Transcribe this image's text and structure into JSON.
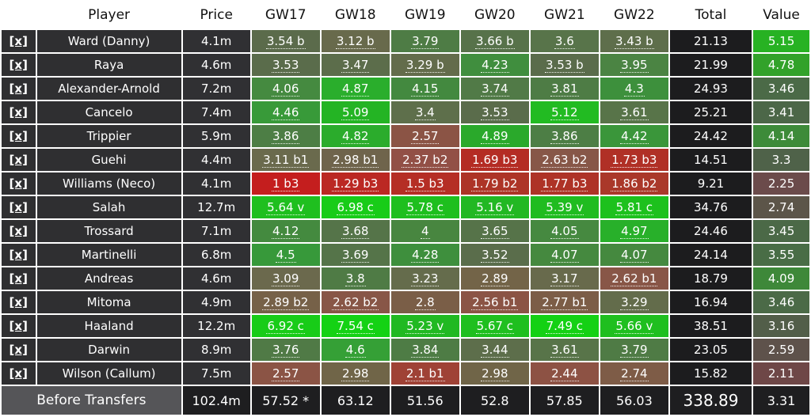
{
  "headers": {
    "remove": "",
    "player": "Player",
    "price": "Price",
    "gws": [
      "GW17",
      "GW18",
      "GW19",
      "GW20",
      "GW21",
      "GW22"
    ],
    "total": "Total",
    "value": "Value"
  },
  "rows": [
    {
      "remove": "[x]",
      "player": "Ward (Danny)",
      "price": "4.1m",
      "gw": [
        {
          "t": "3.54 b",
          "c": "#5b6b4b"
        },
        {
          "t": "3.12 b",
          "c": "#686a4c"
        },
        {
          "t": "3.79",
          "c": "#4e7c45"
        },
        {
          "t": "3.66 b",
          "c": "#57724a"
        },
        {
          "t": "3.6",
          "c": "#58744a"
        },
        {
          "t": "3.43 b",
          "c": "#5e6e4b"
        }
      ],
      "total": "21.13",
      "value": "5.15",
      "value_color": "#27b223"
    },
    {
      "remove": "[x]",
      "player": "Raya",
      "price": "4.6m",
      "gw": [
        {
          "t": "3.53",
          "c": "#5a6c4b"
        },
        {
          "t": "3.47",
          "c": "#5c6d4b"
        },
        {
          "t": "3.29 b",
          "c": "#636c4b"
        },
        {
          "t": "4.23",
          "c": "#408e3e"
        },
        {
          "t": "3.53 b",
          "c": "#5a6c4b"
        },
        {
          "t": "3.95",
          "c": "#4b8443"
        }
      ],
      "total": "21.99",
      "value": "4.78",
      "value_color": "#32a22a"
    },
    {
      "remove": "[x]",
      "player": "Alexander-Arnold",
      "price": "7.2m",
      "gw": [
        {
          "t": "4.06",
          "c": "#458a40"
        },
        {
          "t": "4.87",
          "c": "#2aae2c"
        },
        {
          "t": "4.15",
          "c": "#43893f"
        },
        {
          "t": "3.74",
          "c": "#517a47"
        },
        {
          "t": "3.81",
          "c": "#4e7c45"
        },
        {
          "t": "4.3",
          "c": "#3d903c"
        }
      ],
      "total": "24.93",
      "value": "3.46",
      "value_color": "#4b6a47"
    },
    {
      "remove": "[x]",
      "player": "Cancelo",
      "price": "7.4m",
      "gw": [
        {
          "t": "4.46",
          "c": "#389a39"
        },
        {
          "t": "5.09",
          "c": "#24b424"
        },
        {
          "t": "3.4",
          "c": "#5e6f4b"
        },
        {
          "t": "3.53",
          "c": "#5a6c4b"
        },
        {
          "t": "5.12",
          "c": "#22bb22"
        },
        {
          "t": "3.61",
          "c": "#587449"
        }
      ],
      "total": "25.21",
      "value": "3.41",
      "value_color": "#4c6748"
    },
    {
      "remove": "[x]",
      "player": "Trippier",
      "price": "5.9m",
      "gw": [
        {
          "t": "3.86",
          "c": "#4d7e45"
        },
        {
          "t": "4.82",
          "c": "#2bac2c"
        },
        {
          "t": "2.57",
          "c": "#8b5445"
        },
        {
          "t": "4.89",
          "c": "#2aa92b"
        },
        {
          "t": "3.86",
          "c": "#4d7e45"
        },
        {
          "t": "4.42",
          "c": "#3a963a"
        }
      ],
      "total": "24.42",
      "value": "4.14",
      "value_color": "#3d8b39"
    },
    {
      "remove": "[x]",
      "player": "Guehi",
      "price": "4.4m",
      "gw": [
        {
          "t": "3.11 b1",
          "c": "#6a6a4d"
        },
        {
          "t": "2.98 b1",
          "c": "#6f644c"
        },
        {
          "t": "2.37 b2",
          "c": "#925046"
        },
        {
          "t": "1.69 b3",
          "c": "#b42c24"
        },
        {
          "t": "2.63 b2",
          "c": "#875748"
        },
        {
          "t": "1.73 b3",
          "c": "#b03026"
        }
      ],
      "total": "14.51",
      "value": "3.3",
      "value_color": "#4f6249"
    },
    {
      "remove": "[x]",
      "player": "Williams (Neco)",
      "price": "4.1m",
      "gw": [
        {
          "t": "1 b3",
          "c": "#c41e1e"
        },
        {
          "t": "1.29 b3",
          "c": "#bb2823"
        },
        {
          "t": "1.5 b3",
          "c": "#b52e25"
        },
        {
          "t": "1.79 b2",
          "c": "#ad3427"
        },
        {
          "t": "1.77 b3",
          "c": "#ae3327"
        },
        {
          "t": "1.86 b2",
          "c": "#aa382a"
        }
      ],
      "total": "9.21",
      "value": "2.25",
      "value_color": "#6b4b4b"
    },
    {
      "remove": "[x]",
      "player": "Salah",
      "price": "12.7m",
      "gw": [
        {
          "t": "5.64 v",
          "c": "#1fbf1f"
        },
        {
          "t": "6.98 c",
          "c": "#18cc18"
        },
        {
          "t": "5.78 c",
          "c": "#1ebf1e"
        },
        {
          "t": "5.16 v",
          "c": "#22b823"
        },
        {
          "t": "5.39 v",
          "c": "#20bc20"
        },
        {
          "t": "5.81 c",
          "c": "#1dc11d"
        }
      ],
      "total": "34.76",
      "value": "2.74",
      "value_color": "#5c5549"
    },
    {
      "remove": "[x]",
      "player": "Trossard",
      "price": "7.1m",
      "gw": [
        {
          "t": "4.12",
          "c": "#448a3f"
        },
        {
          "t": "3.68",
          "c": "#557449"
        },
        {
          "t": "4",
          "c": "#488640"
        },
        {
          "t": "3.65",
          "c": "#567349"
        },
        {
          "t": "4.05",
          "c": "#468940"
        },
        {
          "t": "4.97",
          "c": "#28b02a"
        }
      ],
      "total": "24.46",
      "value": "3.45",
      "value_color": "#4b6947"
    },
    {
      "remove": "[x]",
      "player": "Martinelli",
      "price": "6.8m",
      "gw": [
        {
          "t": "4.5",
          "c": "#37993a"
        },
        {
          "t": "3.69",
          "c": "#557449"
        },
        {
          "t": "4.28",
          "c": "#3e8f3d"
        },
        {
          "t": "3.52",
          "c": "#5a6d4b"
        },
        {
          "t": "4.07",
          "c": "#45893f"
        },
        {
          "t": "4.07",
          "c": "#45893f"
        }
      ],
      "total": "24.14",
      "value": "3.55",
      "value_color": "#496d46"
    },
    {
      "remove": "[x]",
      "player": "Andreas",
      "price": "4.6m",
      "gw": [
        {
          "t": "3.09",
          "c": "#6b694d"
        },
        {
          "t": "3.8",
          "c": "#4f7b45"
        },
        {
          "t": "3.23",
          "c": "#656c4c"
        },
        {
          "t": "2.89",
          "c": "#736448"
        },
        {
          "t": "3.17",
          "c": "#686a4c"
        },
        {
          "t": "2.62 b1",
          "c": "#885647"
        }
      ],
      "total": "18.79",
      "value": "4.09",
      "value_color": "#3e8839"
    },
    {
      "remove": "[x]",
      "player": "Mitoma",
      "price": "4.9m",
      "gw": [
        {
          "t": "2.89 b2",
          "c": "#766148"
        },
        {
          "t": "2.62 b2",
          "c": "#885647"
        },
        {
          "t": "2.8",
          "c": "#7a5e47"
        },
        {
          "t": "2.56 b1",
          "c": "#8b5445"
        },
        {
          "t": "2.77 b1",
          "c": "#7c5d47"
        },
        {
          "t": "3.29",
          "c": "#636c4b"
        }
      ],
      "total": "16.94",
      "value": "3.46",
      "value_color": "#4b6a47"
    },
    {
      "remove": "[x]",
      "player": "Haaland",
      "price": "12.2m",
      "gw": [
        {
          "t": "6.92 c",
          "c": "#18cc18"
        },
        {
          "t": "7.54 c",
          "c": "#14d214"
        },
        {
          "t": "5.23 v",
          "c": "#21b922"
        },
        {
          "t": "5.67 c",
          "c": "#1fbf1f"
        },
        {
          "t": "7.49 c",
          "c": "#14d114"
        },
        {
          "t": "5.66 v",
          "c": "#1fbf1f"
        }
      ],
      "total": "38.51",
      "value": "3.16",
      "value_color": "#525e49"
    },
    {
      "remove": "[x]",
      "player": "Darwin",
      "price": "8.9m",
      "gw": [
        {
          "t": "3.76",
          "c": "#507a46"
        },
        {
          "t": "4.6",
          "c": "#35a036"
        },
        {
          "t": "3.84",
          "c": "#4e7c45"
        },
        {
          "t": "3.44",
          "c": "#5d6e4b"
        },
        {
          "t": "3.61",
          "c": "#587449"
        },
        {
          "t": "3.79",
          "c": "#4f7b45"
        }
      ],
      "total": "23.05",
      "value": "2.59",
      "value_color": "#5e524b"
    },
    {
      "remove": "[x]",
      "player": "Wilson (Callum)",
      "price": "7.5m",
      "gw": [
        {
          "t": "2.57",
          "c": "#8b5445"
        },
        {
          "t": "2.98",
          "c": "#706548"
        },
        {
          "t": "2.1 b1",
          "c": "#9f4236"
        },
        {
          "t": "2.98",
          "c": "#706548"
        },
        {
          "t": "2.44",
          "c": "#8d5244"
        },
        {
          "t": "2.74",
          "c": "#7e5c47"
        }
      ],
      "total": "15.82",
      "value": "2.11",
      "value_color": "#6e4747"
    }
  ],
  "footer": {
    "label": "Before Transfers",
    "price": "102.4m",
    "gws": [
      "57.52 *",
      "63.12",
      "51.56",
      "52.8",
      "57.85",
      "56.03"
    ],
    "total": "338.89",
    "value": "3.31"
  }
}
